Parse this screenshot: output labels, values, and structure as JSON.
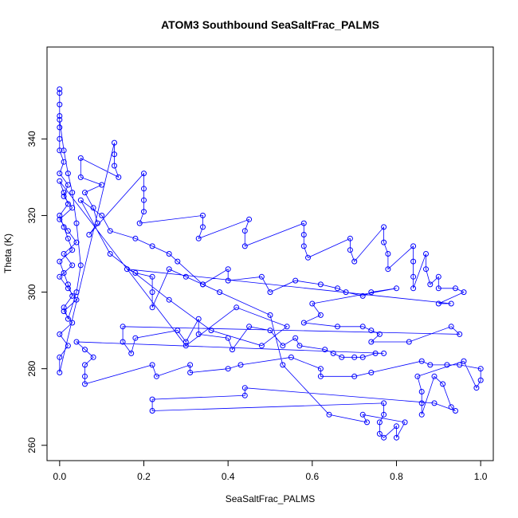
{
  "chart_data": {
    "type": "scatter",
    "title": "ATOM3 Southbound SeaSaltFrac_PALMS",
    "xlabel": "SeaSaltFrac_PALMS",
    "ylabel": "Theta (K)",
    "xlim": [
      -0.03,
      1.03
    ],
    "ylim": [
      256,
      364
    ],
    "x_ticks": [
      0.0,
      0.2,
      0.4,
      0.6,
      0.8,
      1.0
    ],
    "x_tick_labels": [
      "0.0",
      "0.2",
      "0.4",
      "0.6",
      "0.8",
      "1.0"
    ],
    "y_ticks": [
      260,
      280,
      300,
      320,
      340
    ],
    "y_tick_labels": [
      "260",
      "280",
      "300",
      "320",
      "340"
    ],
    "grid": false,
    "legend": "none",
    "marker": "open-circle",
    "connected": true,
    "colors": {
      "series": "#0000ff",
      "axes": "#000000"
    },
    "series": [
      {
        "points": [
          [
            0.0,
            352
          ],
          [
            0.0,
            349
          ],
          [
            0.0,
            346
          ],
          [
            0.0,
            343
          ],
          [
            0.0,
            340
          ],
          [
            0.0,
            337
          ],
          [
            0.01,
            334
          ],
          [
            0.0,
            331
          ],
          [
            0.02,
            328
          ],
          [
            0.01,
            325
          ],
          [
            0.03,
            322
          ],
          [
            0.0,
            319
          ],
          [
            0.02,
            316
          ],
          [
            0.04,
            313
          ],
          [
            0.01,
            310
          ],
          [
            0.03,
            307
          ],
          [
            0.0,
            304
          ],
          [
            0.02,
            301
          ],
          [
            0.04,
            298
          ],
          [
            0.01,
            295
          ],
          [
            0.03,
            292
          ],
          [
            0.0,
            289
          ],
          [
            0.02,
            286
          ],
          [
            0.0,
            283
          ],
          [
            0.0,
            279
          ],
          [
            0.13,
            339
          ],
          [
            0.13,
            336
          ],
          [
            0.13,
            333
          ],
          [
            0.14,
            330
          ],
          [
            0.05,
            335
          ],
          [
            0.05,
            330
          ],
          [
            0.1,
            328
          ],
          [
            0.06,
            326
          ],
          [
            0.08,
            322
          ],
          [
            0.09,
            318
          ],
          [
            0.07,
            315
          ],
          [
            0.2,
            331
          ],
          [
            0.2,
            327
          ],
          [
            0.2,
            324
          ],
          [
            0.2,
            321
          ],
          [
            0.19,
            318
          ],
          [
            0.34,
            320
          ],
          [
            0.34,
            317
          ],
          [
            0.33,
            314
          ],
          [
            0.45,
            319
          ],
          [
            0.44,
            316
          ],
          [
            0.44,
            312
          ],
          [
            0.58,
            318
          ],
          [
            0.58,
            315
          ],
          [
            0.58,
            312
          ],
          [
            0.59,
            309
          ],
          [
            0.69,
            314
          ],
          [
            0.69,
            311
          ],
          [
            0.7,
            308
          ],
          [
            0.77,
            317
          ],
          [
            0.77,
            313
          ],
          [
            0.78,
            310
          ],
          [
            0.78,
            306
          ],
          [
            0.84,
            312
          ],
          [
            0.84,
            308
          ],
          [
            0.84,
            304
          ],
          [
            0.84,
            301
          ],
          [
            0.87,
            310
          ],
          [
            0.87,
            306
          ],
          [
            0.88,
            302
          ],
          [
            0.9,
            304
          ],
          [
            0.9,
            301
          ],
          [
            0.94,
            301
          ],
          [
            0.96,
            300
          ],
          [
            0.9,
            297
          ],
          [
            0.93,
            297
          ],
          [
            0.16,
            306
          ],
          [
            0.18,
            305
          ],
          [
            0.22,
            304
          ],
          [
            0.22,
            300
          ],
          [
            0.22,
            296
          ],
          [
            0.26,
            306
          ],
          [
            0.3,
            304
          ],
          [
            0.34,
            302
          ],
          [
            0.4,
            306
          ],
          [
            0.4,
            303
          ],
          [
            0.48,
            304
          ],
          [
            0.5,
            300
          ],
          [
            0.56,
            303
          ],
          [
            0.62,
            302
          ],
          [
            0.66,
            301
          ],
          [
            0.68,
            300
          ],
          [
            0.72,
            299
          ],
          [
            0.74,
            300
          ],
          [
            0.8,
            301
          ],
          [
            0.6,
            297
          ],
          [
            0.62,
            294
          ],
          [
            0.58,
            292
          ],
          [
            0.66,
            291
          ],
          [
            0.72,
            291
          ],
          [
            0.74,
            290
          ],
          [
            0.76,
            289
          ],
          [
            0.74,
            287
          ],
          [
            0.83,
            287
          ],
          [
            0.93,
            291
          ],
          [
            0.95,
            289
          ],
          [
            0.15,
            291
          ],
          [
            0.15,
            287
          ],
          [
            0.17,
            284
          ],
          [
            0.18,
            288
          ],
          [
            0.28,
            290
          ],
          [
            0.3,
            287
          ],
          [
            0.33,
            293
          ],
          [
            0.33,
            289
          ],
          [
            0.4,
            288
          ],
          [
            0.41,
            285
          ],
          [
            0.45,
            291
          ],
          [
            0.5,
            290
          ],
          [
            0.53,
            286
          ],
          [
            0.56,
            288
          ],
          [
            0.57,
            286
          ],
          [
            0.63,
            285
          ],
          [
            0.65,
            284
          ],
          [
            0.67,
            283
          ],
          [
            0.7,
            283
          ],
          [
            0.72,
            283
          ],
          [
            0.75,
            284
          ],
          [
            0.77,
            284
          ],
          [
            0.04,
            287
          ],
          [
            0.06,
            285
          ],
          [
            0.08,
            283
          ],
          [
            0.06,
            281
          ],
          [
            0.06,
            278
          ],
          [
            0.06,
            276
          ],
          [
            0.22,
            281
          ],
          [
            0.23,
            278
          ],
          [
            0.31,
            281
          ],
          [
            0.31,
            279
          ],
          [
            0.4,
            280
          ],
          [
            0.43,
            281
          ],
          [
            0.55,
            283
          ],
          [
            0.62,
            280
          ],
          [
            0.62,
            278
          ],
          [
            0.7,
            278
          ],
          [
            0.74,
            279
          ],
          [
            0.86,
            282
          ],
          [
            0.88,
            281
          ],
          [
            0.92,
            281
          ],
          [
            0.95,
            281
          ],
          [
            1.0,
            280
          ],
          [
            1.0,
            277
          ],
          [
            0.99,
            275
          ],
          [
            0.96,
            282
          ],
          [
            0.85,
            278
          ],
          [
            0.86,
            274
          ],
          [
            0.86,
            271
          ],
          [
            0.86,
            268
          ],
          [
            0.89,
            278
          ],
          [
            0.91,
            276
          ],
          [
            0.93,
            270
          ],
          [
            0.94,
            269
          ],
          [
            0.89,
            271
          ],
          [
            0.44,
            275
          ],
          [
            0.44,
            273
          ],
          [
            0.22,
            272
          ],
          [
            0.22,
            269
          ],
          [
            0.77,
            271
          ],
          [
            0.77,
            268
          ],
          [
            0.76,
            266
          ],
          [
            0.76,
            263
          ],
          [
            0.77,
            262
          ],
          [
            0.8,
            265
          ],
          [
            0.8,
            262
          ],
          [
            0.82,
            266
          ],
          [
            0.72,
            268
          ],
          [
            0.73,
            266
          ],
          [
            0.64,
            268
          ],
          [
            0.53,
            281
          ],
          [
            0.5,
            294
          ],
          [
            0.38,
            300
          ],
          [
            0.34,
            302
          ],
          [
            0.28,
            308
          ],
          [
            0.26,
            310
          ],
          [
            0.22,
            312
          ],
          [
            0.18,
            314
          ],
          [
            0.12,
            316
          ],
          [
            0.1,
            320
          ],
          [
            0.05,
            324
          ],
          [
            0.12,
            310
          ],
          [
            0.26,
            298
          ],
          [
            0.36,
            290
          ],
          [
            0.48,
            286
          ],
          [
            0.54,
            291
          ],
          [
            0.42,
            296
          ],
          [
            0.3,
            286
          ],
          [
            0.0,
            329
          ],
          [
            0.01,
            326
          ],
          [
            0.02,
            323
          ],
          [
            0.0,
            320
          ],
          [
            0.01,
            317
          ],
          [
            0.02,
            314
          ],
          [
            0.03,
            311
          ],
          [
            0.0,
            308
          ],
          [
            0.01,
            305
          ],
          [
            0.02,
            302
          ],
          [
            0.03,
            299
          ],
          [
            0.01,
            296
          ],
          [
            0.02,
            293
          ],
          [
            0.04,
            300
          ],
          [
            0.05,
            307
          ],
          [
            0.04,
            318
          ],
          [
            0.03,
            326
          ],
          [
            0.02,
            331
          ],
          [
            0.01,
            337
          ],
          [
            0.0,
            345
          ],
          [
            0.0,
            353
          ]
        ]
      }
    ]
  }
}
